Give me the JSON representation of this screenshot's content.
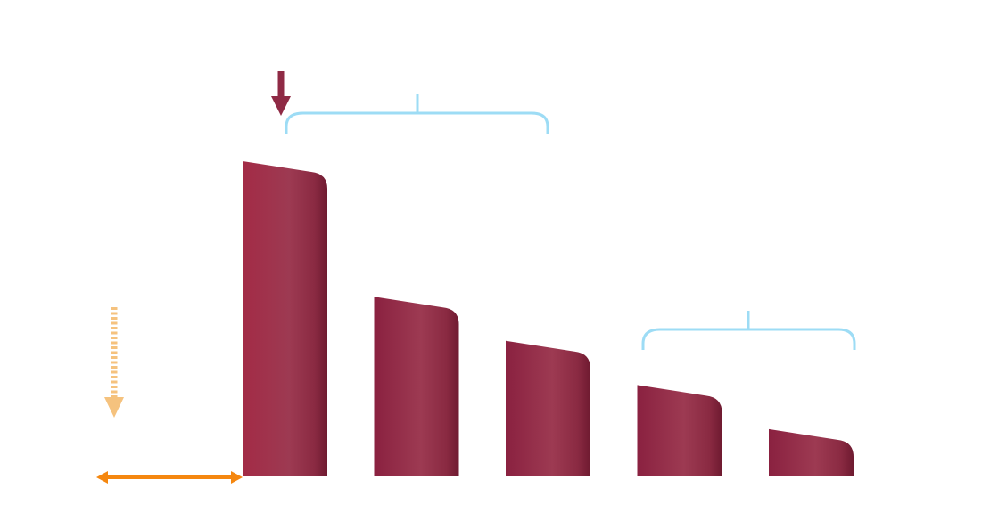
{
  "chart_data": {
    "type": "bar",
    "title": "",
    "xlabel": "",
    "ylabel": "",
    "categories": [
      "",
      "",
      "",
      "",
      ""
    ],
    "values": [
      100,
      57,
      43,
      29,
      15
    ],
    "ylim": [
      0,
      100
    ],
    "grid": false,
    "legend": "none",
    "annotations": [
      {
        "kind": "down-arrow",
        "target_bar": 0,
        "color": "#8f2a45"
      },
      {
        "kind": "brace",
        "span_bars": [
          0,
          1
        ],
        "color": "#9ddcf5"
      },
      {
        "kind": "brace",
        "span_bars": [
          3,
          4
        ],
        "color": "#9ddcf5"
      },
      {
        "kind": "dotted-down-arrow",
        "color": "#f5c27e"
      },
      {
        "kind": "double-arrow-baseline",
        "color": "#f5870f"
      }
    ]
  },
  "colors": {
    "bar_dark": "#85203c",
    "bar_mid": "#a33046",
    "bar_light": "#9d3a52",
    "bar_edge": "#6e1a30",
    "brace": "#9ddcf5",
    "marker_arrow": "#8f2a45",
    "dotted_arrow": "#f5c27e",
    "double_arrow": "#f5870f"
  }
}
